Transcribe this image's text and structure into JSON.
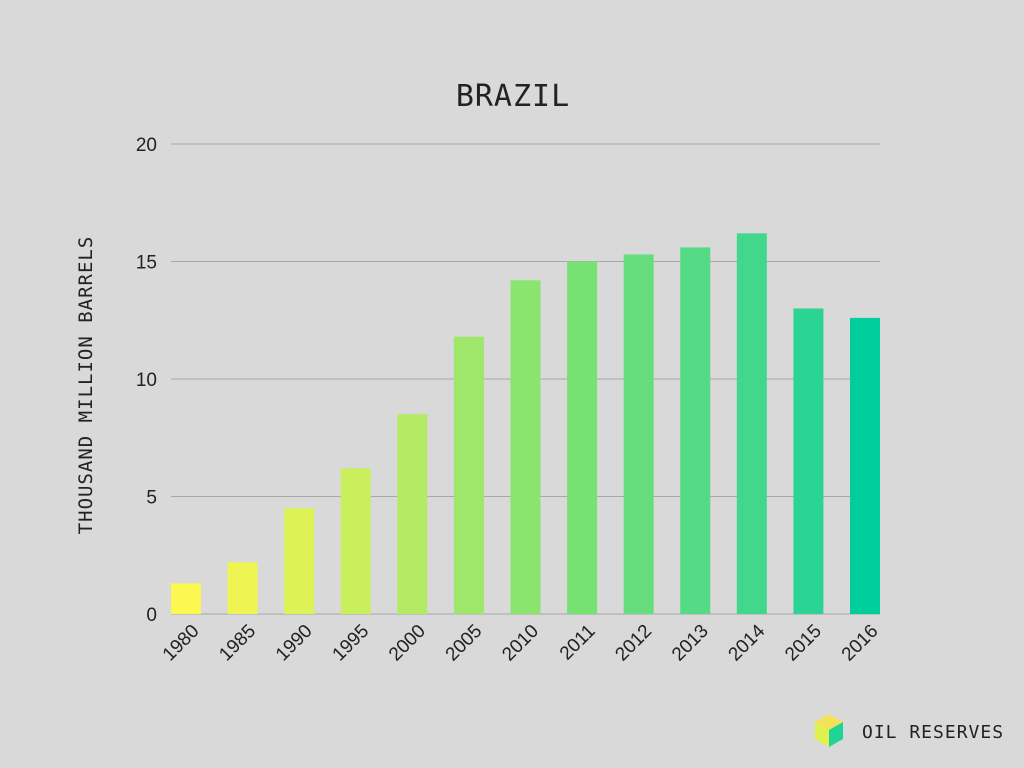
{
  "chart_data": {
    "type": "bar",
    "title": "BRAZIL",
    "xlabel": "",
    "ylabel": "THOUSAND MILLION BARRELS",
    "categories": [
      "1980",
      "1985",
      "1990",
      "1995",
      "2000",
      "2005",
      "2010",
      "2011",
      "2012",
      "2013",
      "2014",
      "2015",
      "2016"
    ],
    "values": [
      1.3,
      2.2,
      4.5,
      6.2,
      8.5,
      11.8,
      14.2,
      15.0,
      15.3,
      15.6,
      16.2,
      13.0,
      12.6
    ],
    "ylim": [
      0,
      20
    ],
    "yticks": [
      0,
      5,
      10,
      15,
      20
    ],
    "grid": true,
    "colors": [
      "#fcf84f",
      "#eef553",
      "#dcf257",
      "#c9ef5d",
      "#b3eb64",
      "#9ee76a",
      "#8ae56f",
      "#77e274",
      "#66de7d",
      "#55da85",
      "#42d78c",
      "#2cd494",
      "#00cf9b"
    ]
  },
  "brand": {
    "label": "OIL RESERVES",
    "colors": {
      "top": "#f4e15a",
      "left": "#dff04f",
      "right": "#1fd494"
    }
  }
}
